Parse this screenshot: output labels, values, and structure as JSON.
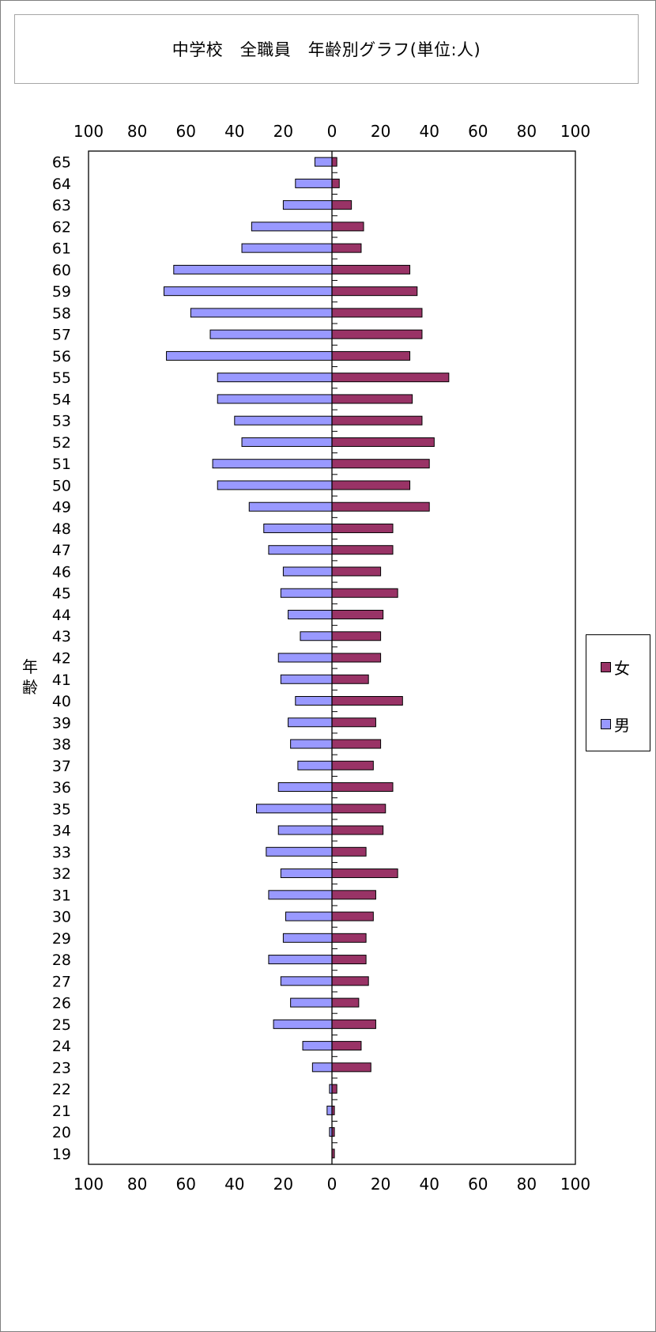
{
  "title": "中学校　全職員　年齢別グラフ(単位:人)",
  "ylabel": "年齢",
  "colors": {
    "female": "#993366",
    "male": "#9999ff",
    "axis": "#000000"
  },
  "chart_data": {
    "type": "bar",
    "orientation": "horizontal-population-pyramid",
    "title": "中学校　全職員　年齢別グラフ(単位:人)",
    "ylabel": "年齢",
    "xlim": [
      -100,
      100
    ],
    "x_ticks": [
      -100,
      -80,
      -60,
      -40,
      -20,
      0,
      20,
      40,
      60,
      80,
      100
    ],
    "x_tick_labels": [
      "100",
      "80",
      "60",
      "40",
      "20",
      "0",
      "20",
      "40",
      "60",
      "80",
      "100"
    ],
    "legend_position": "right",
    "categories": [
      "65",
      "64",
      "63",
      "62",
      "61",
      "60",
      "59",
      "58",
      "57",
      "56",
      "55",
      "54",
      "53",
      "52",
      "51",
      "50",
      "49",
      "48",
      "47",
      "46",
      "45",
      "44",
      "43",
      "42",
      "41",
      "40",
      "39",
      "38",
      "37",
      "36",
      "35",
      "34",
      "33",
      "32",
      "31",
      "30",
      "29",
      "28",
      "27",
      "26",
      "25",
      "24",
      "23",
      "22",
      "21",
      "20",
      "19"
    ],
    "series": [
      {
        "name": "女",
        "values": [
          2,
          3,
          8,
          13,
          12,
          32,
          35,
          37,
          37,
          32,
          48,
          33,
          37,
          42,
          40,
          32,
          40,
          25,
          25,
          20,
          27,
          21,
          20,
          20,
          15,
          29,
          18,
          20,
          17,
          25,
          22,
          21,
          14,
          27,
          18,
          17,
          14,
          14,
          15,
          11,
          18,
          12,
          16,
          2,
          1,
          1,
          1
        ]
      },
      {
        "name": "男",
        "values": [
          7,
          15,
          20,
          33,
          37,
          65,
          69,
          58,
          50,
          68,
          47,
          47,
          40,
          37,
          49,
          47,
          34,
          28,
          26,
          20,
          21,
          18,
          13,
          22,
          21,
          15,
          18,
          17,
          14,
          22,
          31,
          22,
          27,
          21,
          26,
          19,
          20,
          26,
          21,
          17,
          24,
          12,
          8,
          1,
          2,
          1,
          0
        ]
      }
    ]
  }
}
